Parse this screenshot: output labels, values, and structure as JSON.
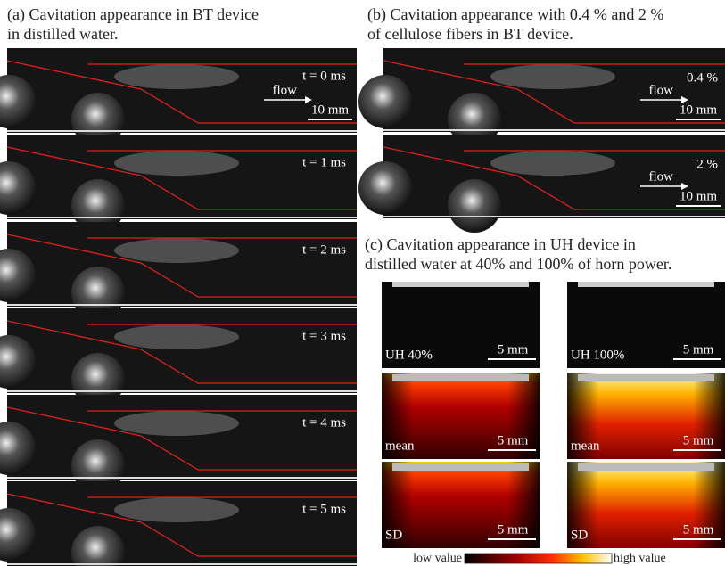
{
  "panel_a": {
    "title": [
      "(a) Cavitation appearance in BT device",
      "in distilled water."
    ],
    "frames": [
      {
        "time": "t = 0 ms",
        "flow": "flow",
        "scale": "10 mm"
      },
      {
        "time": "t = 1 ms"
      },
      {
        "time": "t = 2 ms"
      },
      {
        "time": "t = 3 ms"
      },
      {
        "time": "t = 4 ms"
      },
      {
        "time": "t = 5 ms"
      }
    ]
  },
  "panel_b": {
    "title": [
      "(b) Cavitation appearance with 0.4 % and 2 %",
      "of cellulose fibers in BT device."
    ],
    "frames": [
      {
        "flow": "flow",
        "concentration": "0.4 %",
        "scale": "10 mm"
      },
      {
        "flow": "flow",
        "concentration": "2 %",
        "scale": "10 mm"
      }
    ]
  },
  "panel_c": {
    "title": [
      "(c) Cavitation appearance in UH device in",
      "distilled water at 40% and 100% of horn power."
    ],
    "images": [
      {
        "label": "UH 40%",
        "scale": "5 mm"
      },
      {
        "label": "UH 100%",
        "scale": "5 mm"
      },
      {
        "label": "mean",
        "scale": "5 mm"
      },
      {
        "label": "mean",
        "scale": "5 mm"
      },
      {
        "label": "SD",
        "scale": "5 mm"
      },
      {
        "label": "SD",
        "scale": "5 mm"
      }
    ],
    "colorbar": {
      "low": "low value",
      "high": "high value"
    }
  }
}
